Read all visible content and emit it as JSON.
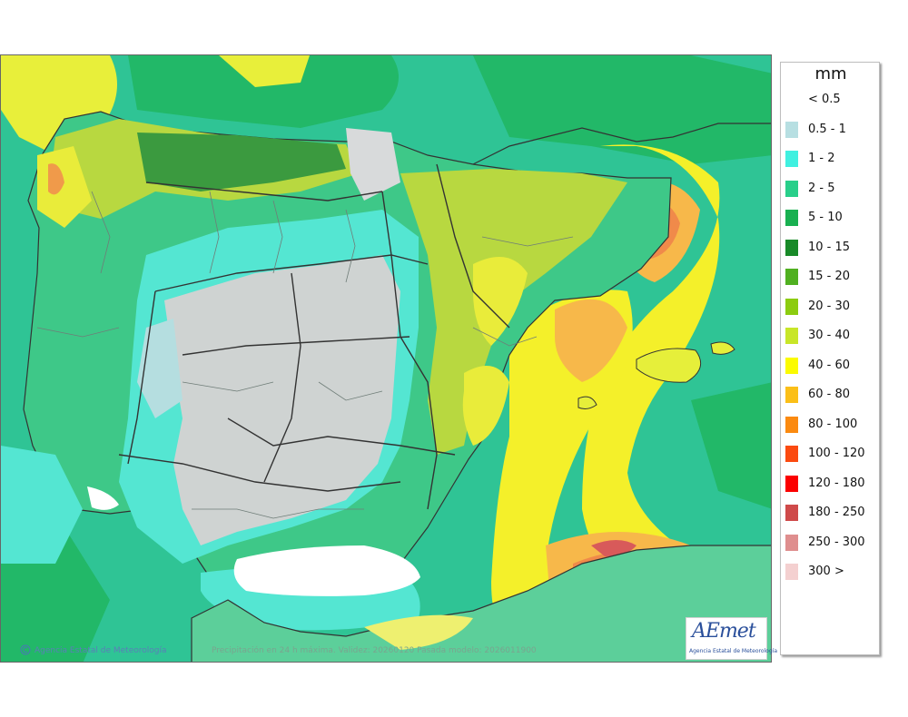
{
  "legend": {
    "unit": "mm",
    "classes": [
      {
        "label": "< 0.5",
        "color": "#ffffff"
      },
      {
        "label": "0.5 - 1",
        "color": "#b7dfe2"
      },
      {
        "label": "1 - 2",
        "color": "#40f0e0"
      },
      {
        "label": "2 - 5",
        "color": "#28cf8a"
      },
      {
        "label": "5 - 10",
        "color": "#18b050"
      },
      {
        "label": "10 - 15",
        "color": "#188a28"
      },
      {
        "label": "15 - 20",
        "color": "#50b020"
      },
      {
        "label": "20 - 30",
        "color": "#8ccc10"
      },
      {
        "label": "30 - 40",
        "color": "#c8e628"
      },
      {
        "label": "40 - 60",
        "color": "#fbfb00"
      },
      {
        "label": "60 - 80",
        "color": "#fbbf18"
      },
      {
        "label": "80 - 100",
        "color": "#fb8a10"
      },
      {
        "label": "100 - 120",
        "color": "#fb4a10"
      },
      {
        "label": "120 - 180",
        "color": "#fb0000"
      },
      {
        "label": "180 - 250",
        "color": "#cf4a4a"
      },
      {
        "label": "250 - 300",
        "color": "#df8e8e"
      },
      {
        "label": "300 >",
        "color": "#f4d0d0"
      }
    ]
  },
  "footer": {
    "credit": "Agencia Estatal de Meteorología",
    "caption": "Precipitación en 24 h máxima. Validez: 20260120 Pasada modelo: 2026011900"
  },
  "logo": {
    "wordmark": "AEmet",
    "subtitle": "Agencia Estatal de Meteorología"
  }
}
